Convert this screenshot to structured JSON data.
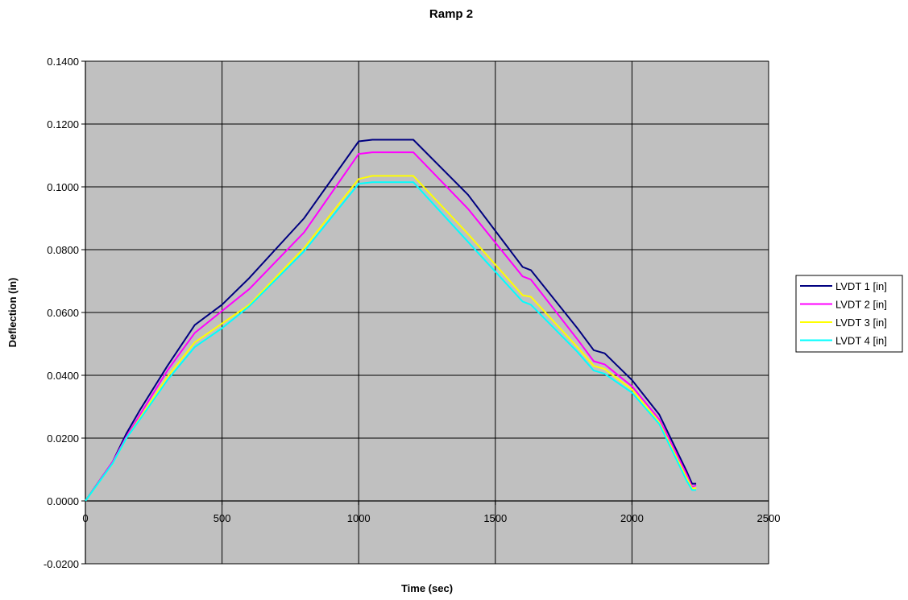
{
  "chart_data": {
    "type": "line",
    "title": "Ramp 2",
    "xlabel": "Time (sec)",
    "ylabel": "Deflection (in)",
    "xlim": [
      0,
      2500
    ],
    "ylim": [
      -0.02,
      0.14
    ],
    "x_ticks": [
      "0",
      "500",
      "1000",
      "1500",
      "2000",
      "2500"
    ],
    "y_ticks": [
      "-0.0200",
      "0.0000",
      "0.0200",
      "0.0400",
      "0.0600",
      "0.0800",
      "0.1000",
      "0.1200",
      "0.1400"
    ],
    "grid": true,
    "plot_background": "#c0c0c0",
    "legend_position": "right",
    "series": [
      {
        "name": "LVDT 1 [in]",
        "color": "#000080",
        "points": [
          [
            0,
            0
          ],
          [
            100,
            0.0125
          ],
          [
            150,
            0.0215
          ],
          [
            200,
            0.029
          ],
          [
            300,
            0.043
          ],
          [
            400,
            0.056
          ],
          [
            500,
            0.0625
          ],
          [
            600,
            0.071
          ],
          [
            800,
            0.09
          ],
          [
            1000,
            0.1145
          ],
          [
            1050,
            0.115
          ],
          [
            1200,
            0.115
          ],
          [
            1400,
            0.0975
          ],
          [
            1600,
            0.0745
          ],
          [
            1630,
            0.0735
          ],
          [
            1800,
            0.055
          ],
          [
            1860,
            0.048
          ],
          [
            1900,
            0.047
          ],
          [
            2000,
            0.0385
          ],
          [
            2100,
            0.0275
          ],
          [
            2200,
            0.0095
          ],
          [
            2220,
            0.0055
          ],
          [
            2235,
            0.0055
          ]
        ]
      },
      {
        "name": "LVDT 2 [in]",
        "color": "#ff00ff",
        "points": [
          [
            0,
            0
          ],
          [
            100,
            0.0125
          ],
          [
            150,
            0.0205
          ],
          [
            200,
            0.0275
          ],
          [
            300,
            0.0415
          ],
          [
            400,
            0.0535
          ],
          [
            500,
            0.0605
          ],
          [
            600,
            0.0675
          ],
          [
            800,
            0.0855
          ],
          [
            1000,
            0.1105
          ],
          [
            1050,
            0.111
          ],
          [
            1200,
            0.111
          ],
          [
            1400,
            0.093
          ],
          [
            1600,
            0.0715
          ],
          [
            1630,
            0.0705
          ],
          [
            1800,
            0.0515
          ],
          [
            1860,
            0.0445
          ],
          [
            1900,
            0.0435
          ],
          [
            2000,
            0.0365
          ],
          [
            2100,
            0.026
          ],
          [
            2200,
            0.0085
          ],
          [
            2220,
            0.0045
          ],
          [
            2235,
            0.005
          ]
        ]
      },
      {
        "name": "LVDT 3 [in]",
        "color": "#ffff00",
        "points": [
          [
            0,
            0
          ],
          [
            100,
            0.012
          ],
          [
            150,
            0.02
          ],
          [
            200,
            0.0265
          ],
          [
            300,
            0.0395
          ],
          [
            400,
            0.0505
          ],
          [
            500,
            0.0565
          ],
          [
            600,
            0.0625
          ],
          [
            800,
            0.0805
          ],
          [
            1000,
            0.1025
          ],
          [
            1050,
            0.1035
          ],
          [
            1200,
            0.1035
          ],
          [
            1400,
            0.085
          ],
          [
            1600,
            0.0655
          ],
          [
            1630,
            0.065
          ],
          [
            1800,
            0.049
          ],
          [
            1860,
            0.043
          ],
          [
            1900,
            0.042
          ],
          [
            2000,
            0.0355
          ],
          [
            2100,
            0.025
          ],
          [
            2200,
            0.0075
          ],
          [
            2220,
            0.004
          ],
          [
            2235,
            0.004
          ]
        ]
      },
      {
        "name": "LVDT 4 [in]",
        "color": "#00ffff",
        "points": [
          [
            0,
            0
          ],
          [
            100,
            0.012
          ],
          [
            150,
            0.02
          ],
          [
            200,
            0.026
          ],
          [
            300,
            0.0385
          ],
          [
            400,
            0.049
          ],
          [
            500,
            0.055
          ],
          [
            600,
            0.062
          ],
          [
            800,
            0.0795
          ],
          [
            1000,
            0.101
          ],
          [
            1050,
            0.1015
          ],
          [
            1200,
            0.1015
          ],
          [
            1400,
            0.0825
          ],
          [
            1600,
            0.0635
          ],
          [
            1630,
            0.0625
          ],
          [
            1800,
            0.0475
          ],
          [
            1860,
            0.0415
          ],
          [
            1900,
            0.0405
          ],
          [
            2000,
            0.0345
          ],
          [
            2100,
            0.0245
          ],
          [
            2200,
            0.0065
          ],
          [
            2220,
            0.0035
          ],
          [
            2235,
            0.0035
          ]
        ]
      }
    ]
  }
}
